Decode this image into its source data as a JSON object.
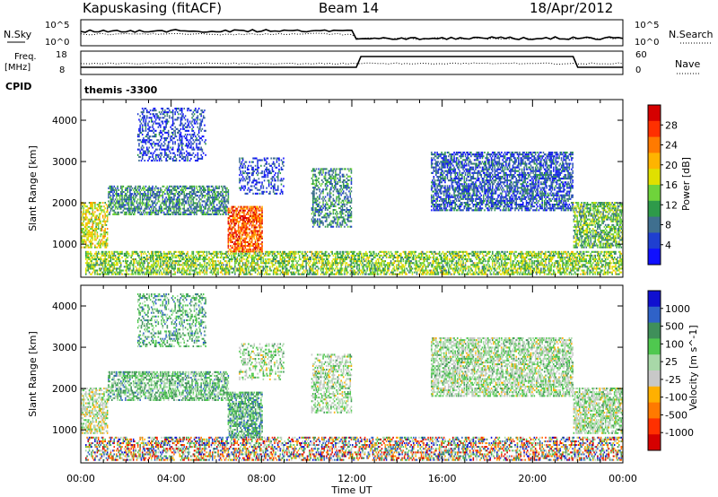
{
  "header": {
    "title": "Kapuskasing (fitACF)",
    "beam": "Beam 14",
    "date": "18/Apr/2012"
  },
  "panels": {
    "nsky": {
      "label": "N.Sky",
      "right_label": "N.Search",
      "yticks_left": [
        "10^5",
        "10^0"
      ],
      "yticks_right": [
        "10^5",
        "10^0"
      ]
    },
    "freq": {
      "label_line1": "Freq.",
      "label_line2": "[MHz]",
      "right_label": "Nave",
      "yticks_left": [
        "18",
        "8"
      ],
      "yticks_right": [
        "60",
        "0"
      ]
    },
    "cpid": {
      "label": "CPID",
      "value": "themis -3300"
    }
  },
  "chart_data": [
    {
      "type": "heatmap",
      "name_panel": "power",
      "ylabel": "Slant Range [km]",
      "xlabel": "Time UT",
      "xlim": [
        0,
        24
      ],
      "ylim": [
        200,
        4500
      ],
      "yticks": [
        "1000",
        "2000",
        "3000",
        "4000"
      ],
      "xticks": [
        "00:00",
        "04:00",
        "08:00",
        "12:00",
        "16:00",
        "20:00",
        "00:00"
      ],
      "colorbar": {
        "label": "Power [dB]",
        "ticks": [
          "28",
          "24",
          "20",
          "16",
          "12",
          "8",
          "4"
        ],
        "colors": [
          "#d50000",
          "#ff3000",
          "#ff7a00",
          "#ffb400",
          "#e0e000",
          "#6fd33b",
          "#2e9a4a",
          "#3f6f8f",
          "#1f3fd0",
          "#1010ff"
        ]
      },
      "regions": [
        {
          "t0": 0.2,
          "t1": 24,
          "r0": 250,
          "r1": 800,
          "level": 0.45,
          "density": 0.6
        },
        {
          "t0": 0.0,
          "t1": 1.2,
          "r0": 900,
          "r1": 2000,
          "level": 0.55,
          "density": 0.55
        },
        {
          "t0": 1.2,
          "t1": 6.5,
          "r0": 1700,
          "r1": 2400,
          "level": 0.3,
          "density": 0.6
        },
        {
          "t0": 2.5,
          "t1": 5.5,
          "r0": 3000,
          "r1": 4300,
          "level": 0.15,
          "density": 0.35
        },
        {
          "t0": 6.5,
          "t1": 8.0,
          "r0": 800,
          "r1": 1900,
          "level": 0.8,
          "density": 0.7
        },
        {
          "t0": 7.0,
          "t1": 9.0,
          "r0": 2200,
          "r1": 3100,
          "level": 0.15,
          "density": 0.35
        },
        {
          "t0": 10.2,
          "t1": 12.0,
          "r0": 1400,
          "r1": 2800,
          "level": 0.3,
          "density": 0.45
        },
        {
          "t0": 15.5,
          "t1": 21.8,
          "r0": 1800,
          "r1": 3200,
          "level": 0.2,
          "density": 0.6
        },
        {
          "t0": 21.8,
          "t1": 24.0,
          "r0": 900,
          "r1": 2000,
          "level": 0.4,
          "density": 0.65
        }
      ]
    },
    {
      "type": "heatmap",
      "name_panel": "velocity",
      "ylabel": "Slant Range [km]",
      "xlabel": "Time UT",
      "xlim": [
        0,
        24
      ],
      "ylim": [
        200,
        4500
      ],
      "yticks": [
        "1000",
        "2000",
        "3000",
        "4000"
      ],
      "xticks": [
        "00:00",
        "04:00",
        "08:00",
        "12:00",
        "16:00",
        "20:00",
        "00:00"
      ],
      "colorbar": {
        "label": "Velocity [m s^-1]",
        "ticks": [
          "1000",
          "500",
          "100",
          "25",
          "-25",
          "-100",
          "-500",
          "-1000"
        ],
        "colors": [
          "#1010d0",
          "#2f62c8",
          "#3f8f5a",
          "#4fc84f",
          "#a8d8a8",
          "#c8c8c8",
          "#ffb000",
          "#ff7a00",
          "#ff3000",
          "#d50000"
        ]
      },
      "regions": [
        {
          "t0": 0.2,
          "t1": 24,
          "r0": 250,
          "r1": 800,
          "level": 0.5,
          "density": 0.5
        },
        {
          "t0": 0.0,
          "t1": 1.2,
          "r0": 900,
          "r1": 2000,
          "level": 0.5,
          "density": 0.55
        },
        {
          "t0": 1.2,
          "t1": 6.5,
          "r0": 1700,
          "r1": 2400,
          "level": 0.65,
          "density": 0.6
        },
        {
          "t0": 2.5,
          "t1": 5.5,
          "r0": 3000,
          "r1": 4300,
          "level": 0.68,
          "density": 0.35
        },
        {
          "t0": 6.5,
          "t1": 8.0,
          "r0": 800,
          "r1": 1900,
          "level": 0.7,
          "density": 0.7
        },
        {
          "t0": 7.0,
          "t1": 9.0,
          "r0": 2200,
          "r1": 3100,
          "level": 0.55,
          "density": 0.35
        },
        {
          "t0": 10.2,
          "t1": 12.0,
          "r0": 1400,
          "r1": 2800,
          "level": 0.55,
          "density": 0.45
        },
        {
          "t0": 15.5,
          "t1": 21.8,
          "r0": 1800,
          "r1": 3200,
          "level": 0.55,
          "density": 0.6
        },
        {
          "t0": 21.8,
          "t1": 24.0,
          "r0": 900,
          "r1": 2000,
          "level": 0.55,
          "density": 0.65
        }
      ]
    }
  ]
}
